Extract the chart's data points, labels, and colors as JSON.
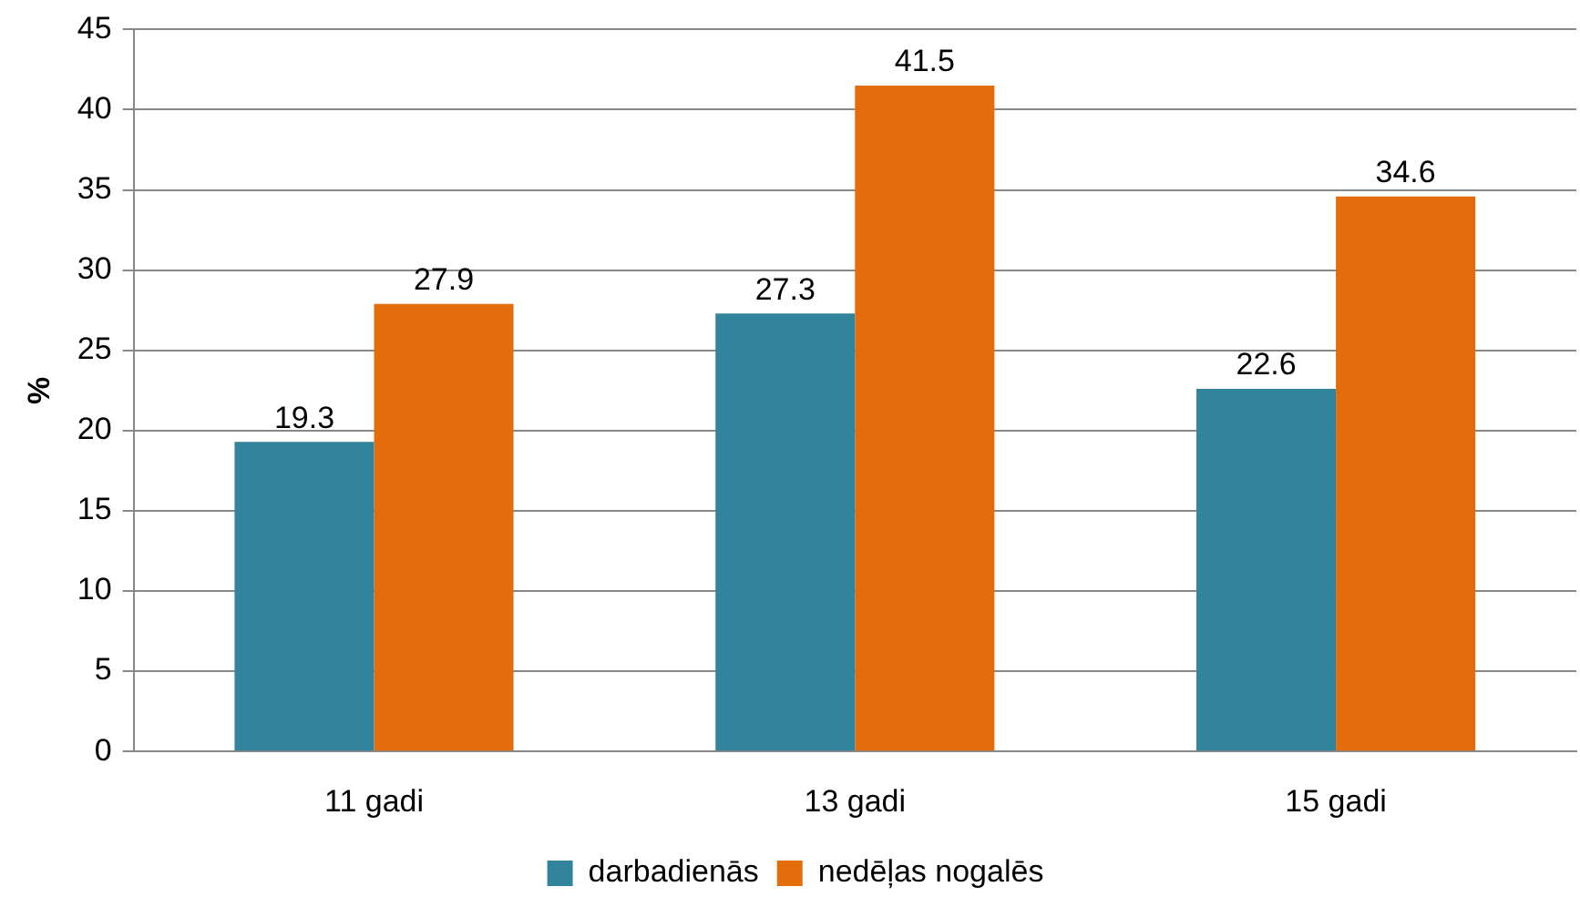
{
  "chart_data": {
    "type": "bar",
    "ylabel": "%",
    "categories": [
      "11 gadi",
      "13 gadi",
      "15 gadi"
    ],
    "series": [
      {
        "name": "darbadienās",
        "color": "#31849b",
        "values": [
          19.3,
          27.3,
          22.6
        ]
      },
      {
        "name": "nedēļas nogalēs",
        "color": "#e46c0a",
        "values": [
          27.9,
          41.5,
          34.6
        ]
      }
    ],
    "ylim": [
      0,
      45
    ],
    "yticks": [
      0,
      5,
      10,
      15,
      20,
      25,
      30,
      35,
      40,
      45
    ],
    "grid": "y",
    "legend": "bottom",
    "data_labels": true
  }
}
